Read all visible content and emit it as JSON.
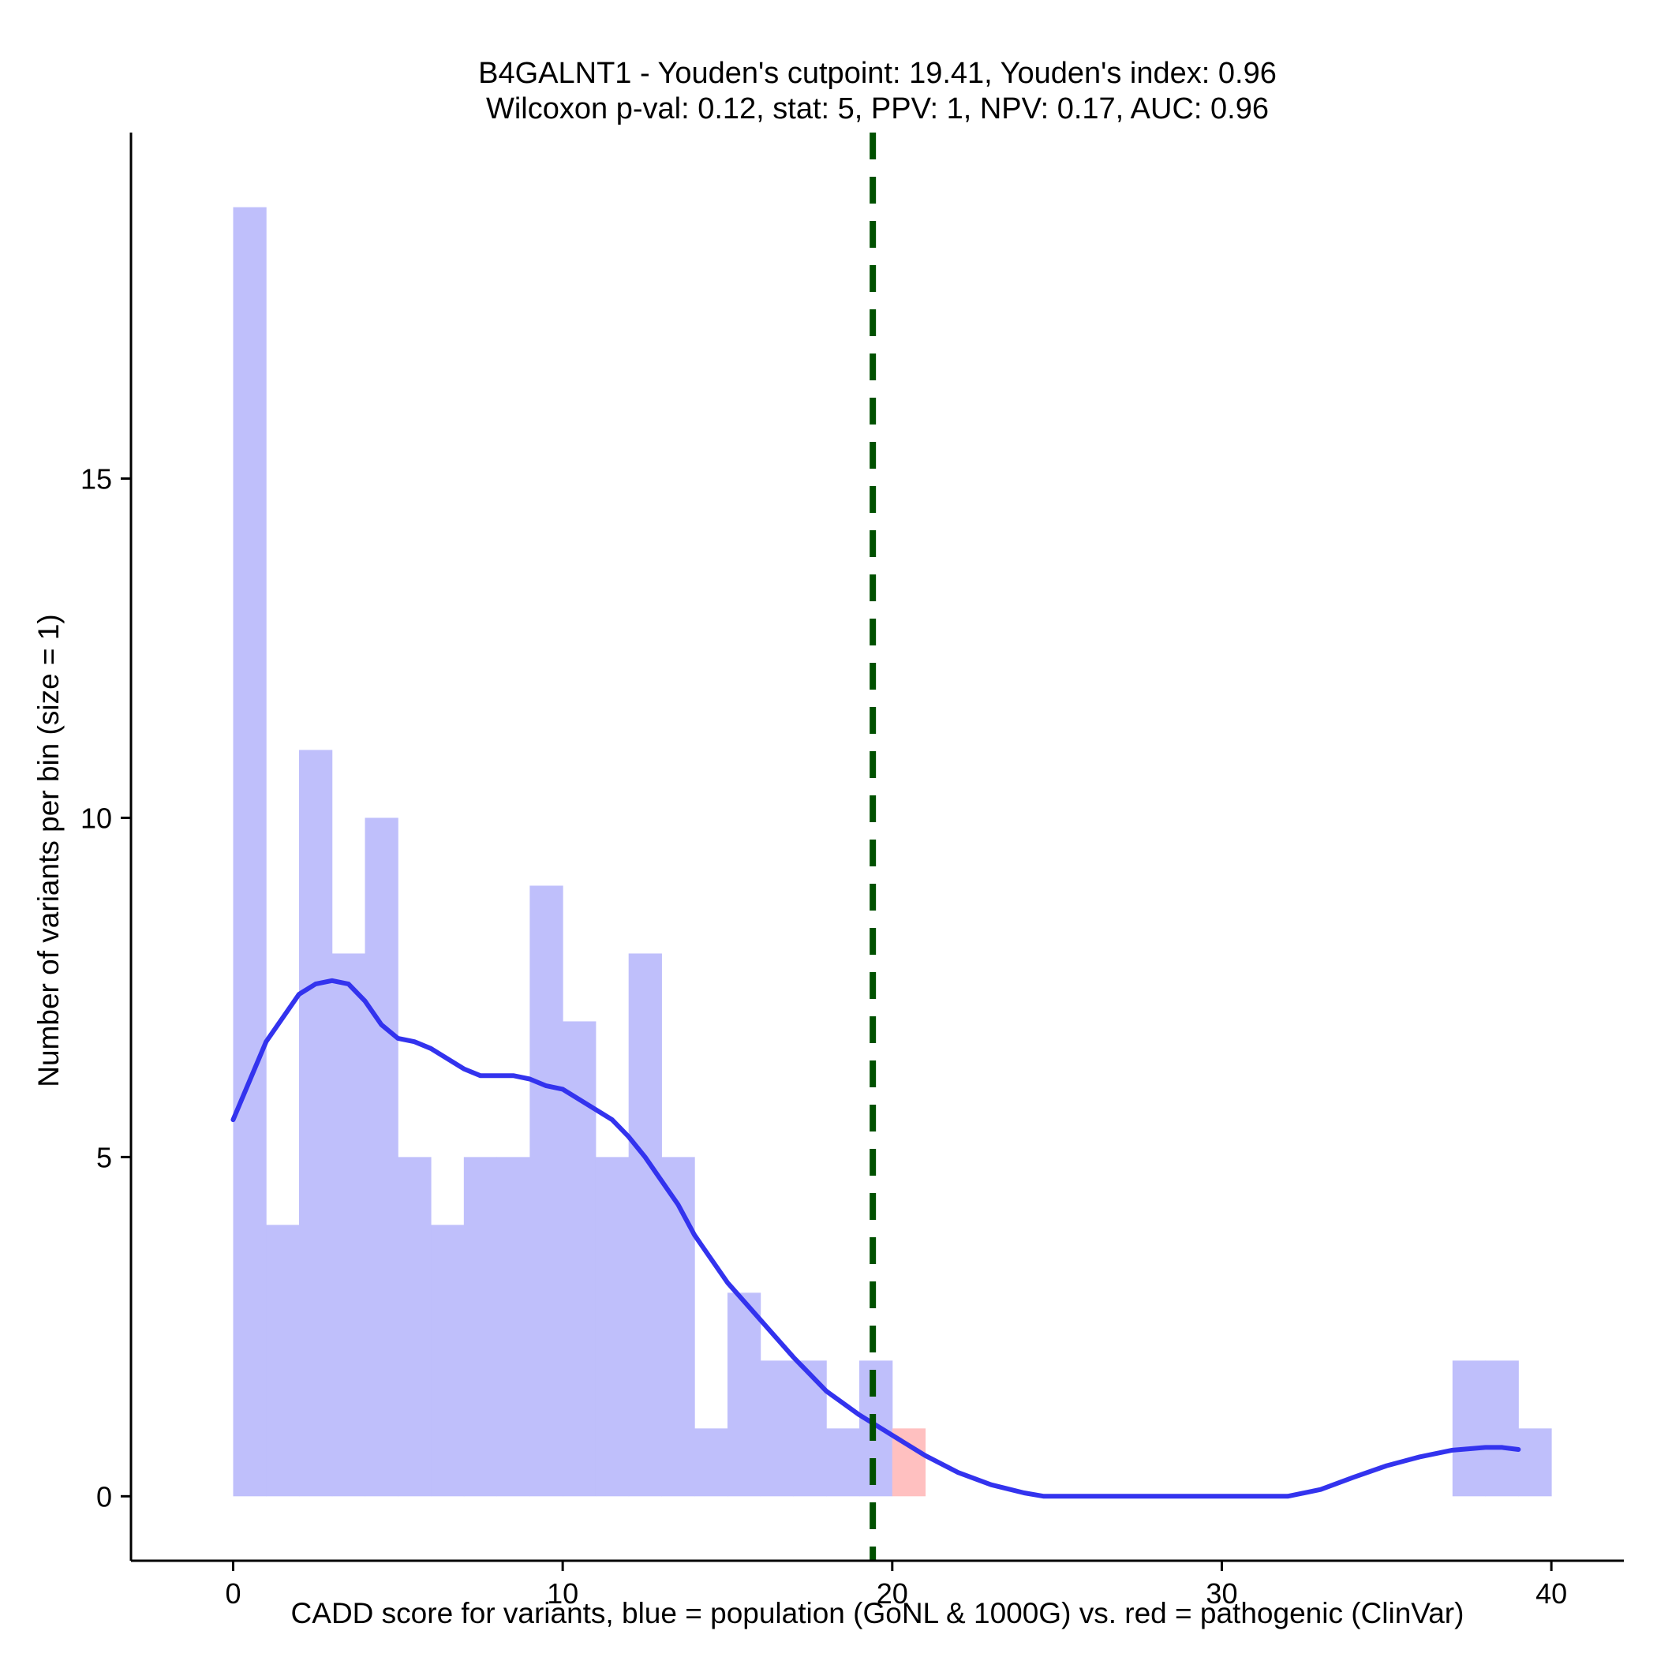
{
  "chart_data": {
    "type": "bar",
    "title": "B4GALNT1 - Youden's cutpoint: 19.41, Youden's index: 0.96",
    "subtitle": "Wilcoxon p-val: 0.12, stat: 5, PPV: 1, NPV: 0.17, AUC: 0.96",
    "xlabel": "CADD score for variants, blue = population (GoNL & 1000G) vs. red = pathogenic (ClinVar)",
    "ylabel": "Number of variants per bin (size = 1)",
    "xlim": [
      -3.1,
      42.2
    ],
    "ylim": [
      -0.95,
      20.1
    ],
    "x_ticks": [
      0,
      10,
      20,
      30,
      40
    ],
    "y_ticks": [
      0,
      5,
      10,
      15
    ],
    "bin_width": 1,
    "series": [
      {
        "name": "population (GoNL & 1000G)",
        "color": "#bfbffb",
        "bins": [
          {
            "start": 0,
            "count": 19
          },
          {
            "start": 1,
            "count": 4
          },
          {
            "start": 2,
            "count": 11
          },
          {
            "start": 3,
            "count": 8
          },
          {
            "start": 4,
            "count": 10
          },
          {
            "start": 5,
            "count": 5
          },
          {
            "start": 6,
            "count": 4
          },
          {
            "start": 7,
            "count": 5
          },
          {
            "start": 8,
            "count": 5
          },
          {
            "start": 9,
            "count": 9
          },
          {
            "start": 10,
            "count": 7
          },
          {
            "start": 11,
            "count": 5
          },
          {
            "start": 12,
            "count": 8
          },
          {
            "start": 13,
            "count": 5
          },
          {
            "start": 14,
            "count": 1
          },
          {
            "start": 15,
            "count": 3
          },
          {
            "start": 16,
            "count": 2
          },
          {
            "start": 17,
            "count": 2
          },
          {
            "start": 18,
            "count": 1
          },
          {
            "start": 19,
            "count": 2
          },
          {
            "start": 37,
            "count": 2
          },
          {
            "start": 38,
            "count": 2
          },
          {
            "start": 39,
            "count": 1
          }
        ]
      },
      {
        "name": "pathogenic (ClinVar)",
        "color": "#ffc0c0",
        "bins": [
          {
            "start": 20,
            "count": 1
          }
        ]
      }
    ],
    "density_curve": {
      "name": "population density",
      "color": "#3333ee",
      "x": [
        0,
        1,
        2,
        2.5,
        3,
        3.5,
        4,
        4.5,
        5,
        5.5,
        6,
        6.5,
        7,
        7.5,
        8,
        8.5,
        9,
        9.5,
        10,
        10.5,
        11,
        11.5,
        12,
        12.5,
        13,
        13.5,
        14,
        15,
        16,
        17,
        18,
        19,
        20,
        21,
        22,
        23,
        24,
        24.6,
        26,
        28,
        30,
        32,
        33,
        34,
        35,
        36,
        37,
        38,
        38.5,
        39
      ],
      "y": [
        5.55,
        6.7,
        7.4,
        7.55,
        7.6,
        7.55,
        7.3,
        6.95,
        6.75,
        6.7,
        6.6,
        6.45,
        6.3,
        6.2,
        6.2,
        6.2,
        6.15,
        6.05,
        6.0,
        5.85,
        5.7,
        5.55,
        5.3,
        5.0,
        4.65,
        4.3,
        3.85,
        3.15,
        2.6,
        2.05,
        1.55,
        1.2,
        0.9,
        0.6,
        0.35,
        0.17,
        0.05,
        0.0,
        0.0,
        0.0,
        0.0,
        0.0,
        0.1,
        0.28,
        0.45,
        0.58,
        0.68,
        0.72,
        0.72,
        0.69
      ]
    },
    "cutpoint_line": {
      "x": 19.41,
      "color": "#005000",
      "style": "dashed"
    }
  }
}
